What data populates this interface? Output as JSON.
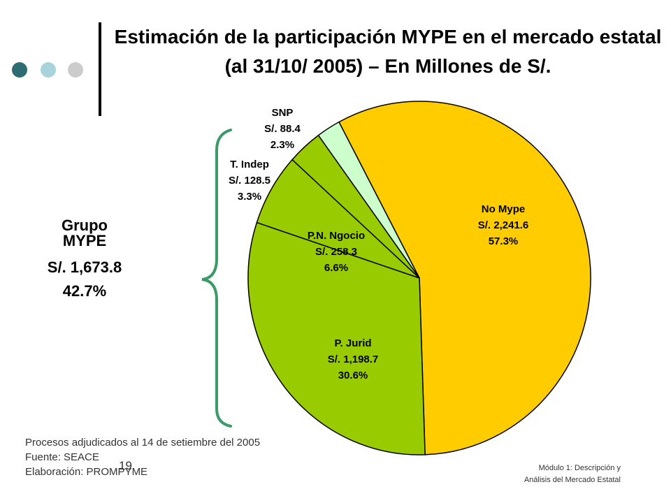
{
  "title": "Estimación de la participación MYPE en el mercado estatal (al 31/10/ 2005) – En Millones de S/.",
  "decor": {
    "dot_colors": [
      "#2e6b72",
      "#a8d3da",
      "#cccccc"
    ],
    "brace_color": "#3a9a6a"
  },
  "group": {
    "label_line1": "Grupo",
    "label_line2": "MYPE",
    "value": "S/. 1,673.8",
    "percent": "42.7%"
  },
  "chart_data": {
    "type": "pie",
    "title": "",
    "start_angle_deg": -118,
    "direction": "clockwise",
    "slices": [
      {
        "name": "No Mype",
        "value_label": "S/. 2,241.6",
        "value": 2241.6,
        "percent": 57.3,
        "percent_label": "57.3%",
        "color": "#ffcc00"
      },
      {
        "name": "P. Jurid",
        "value_label": "S/. 1,198.7",
        "value": 1198.7,
        "percent": 30.6,
        "percent_label": "30.6%",
        "color": "#99cc00"
      },
      {
        "name": "P.N. Ngocio",
        "value_label": "S/. 258.3",
        "value": 258.3,
        "percent": 6.6,
        "percent_label": "6.6%",
        "color": "#99cc00"
      },
      {
        "name": "T. Indep",
        "value_label": "S/. 128.5",
        "value": 128.5,
        "percent": 3.3,
        "percent_label": "3.3%",
        "color": "#99cc00"
      },
      {
        "name": "SNP",
        "value_label": "S/. 88.4",
        "value": 88.4,
        "percent": 2.3,
        "percent_label": "2.3%",
        "color": "#ccffcc"
      }
    ]
  },
  "notes": {
    "line1": "Procesos adjudicados al 14 de setiembre del 2005",
    "line2": "Fuente: SEACE",
    "line3": "Elaboración: PROMPYME"
  },
  "page_number": "19",
  "footer": {
    "line1": "Módulo 1: Descripción y",
    "line2": "Análisis del Mercado Estatal"
  }
}
